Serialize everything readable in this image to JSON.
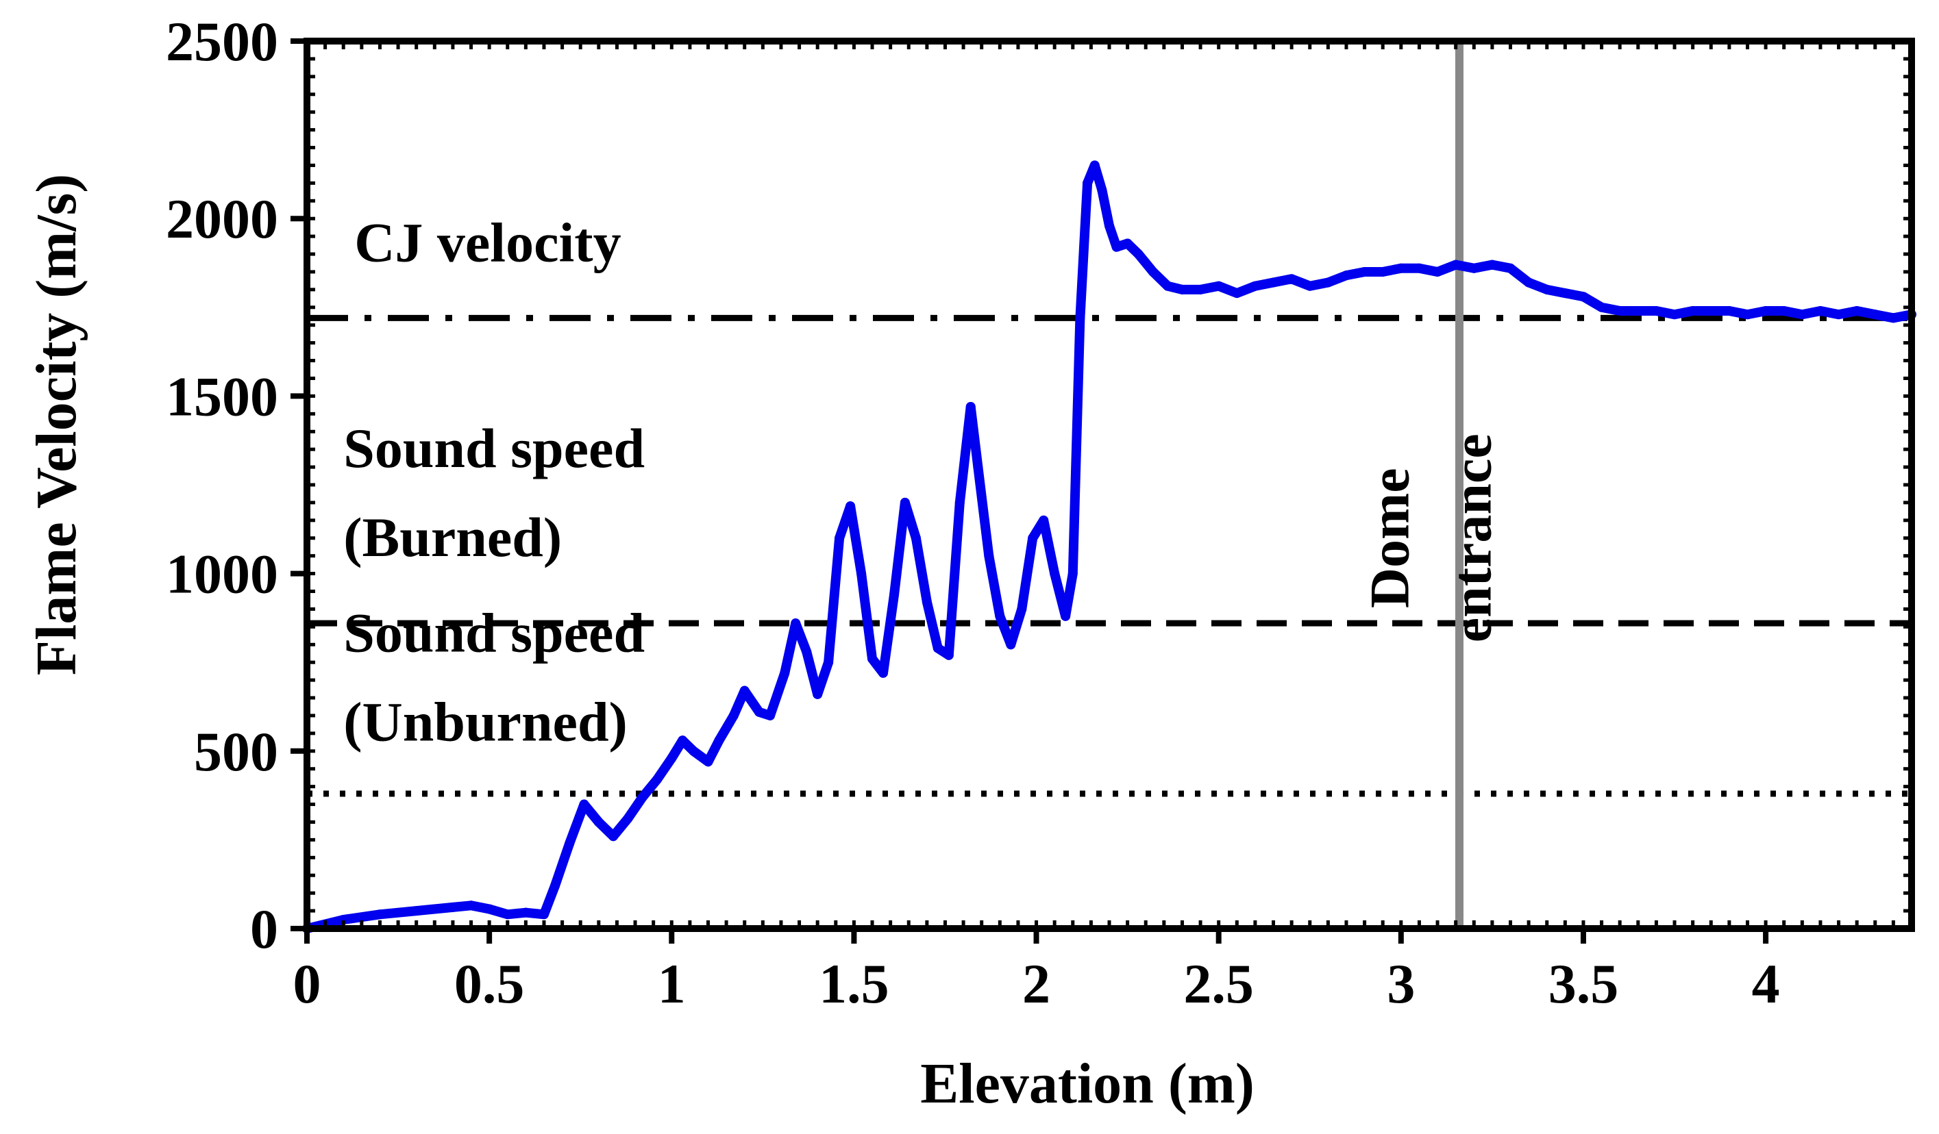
{
  "chart_data": {
    "type": "line",
    "title": "",
    "xlabel": "Elevation (m)",
    "ylabel": "Flame Velocity (m/s)",
    "xlim": [
      0,
      4.4
    ],
    "ylim": [
      0,
      2500
    ],
    "xticks": [
      0,
      0.5,
      1,
      1.5,
      2,
      2.5,
      3,
      3.5,
      4
    ],
    "xtick_labels": [
      "0",
      "0.5",
      "1",
      "1.5",
      "2",
      "2.5",
      "3",
      "3.5",
      "4"
    ],
    "yticks": [
      0,
      500,
      1000,
      1500,
      2000,
      2500
    ],
    "ytick_labels": [
      "0",
      "500",
      "1000",
      "1500",
      "2000",
      "2500"
    ],
    "grid": false,
    "series": [
      {
        "name": "Flame velocity",
        "color": "#0000ee",
        "x": [
          0,
          0.1,
          0.2,
          0.3,
          0.4,
          0.45,
          0.5,
          0.55,
          0.6,
          0.65,
          0.68,
          0.72,
          0.76,
          0.8,
          0.84,
          0.88,
          0.92,
          0.96,
          1.0,
          1.03,
          1.06,
          1.1,
          1.13,
          1.17,
          1.2,
          1.24,
          1.27,
          1.31,
          1.34,
          1.37,
          1.4,
          1.43,
          1.46,
          1.49,
          1.52,
          1.55,
          1.58,
          1.61,
          1.64,
          1.67,
          1.7,
          1.73,
          1.76,
          1.79,
          1.82,
          1.84,
          1.87,
          1.9,
          1.93,
          1.96,
          1.99,
          2.02,
          2.05,
          2.08,
          2.1,
          2.12,
          2.14,
          2.16,
          2.18,
          2.2,
          2.22,
          2.25,
          2.28,
          2.32,
          2.36,
          2.4,
          2.45,
          2.5,
          2.55,
          2.6,
          2.65,
          2.7,
          2.75,
          2.8,
          2.85,
          2.9,
          2.95,
          3.0,
          3.05,
          3.1,
          3.15,
          3.2,
          3.25,
          3.3,
          3.35,
          3.4,
          3.45,
          3.5,
          3.55,
          3.6,
          3.65,
          3.7,
          3.75,
          3.8,
          3.85,
          3.9,
          3.95,
          4.0,
          4.05,
          4.1,
          4.15,
          4.2,
          4.25,
          4.3,
          4.35,
          4.4
        ],
        "y": [
          0,
          25,
          40,
          50,
          60,
          65,
          55,
          40,
          45,
          40,
          120,
          240,
          350,
          300,
          260,
          310,
          370,
          420,
          480,
          530,
          500,
          470,
          530,
          600,
          670,
          610,
          600,
          720,
          860,
          780,
          660,
          750,
          1100,
          1190,
          1000,
          760,
          720,
          940,
          1200,
          1100,
          920,
          790,
          770,
          1200,
          1470,
          1300,
          1050,
          880,
          800,
          900,
          1100,
          1150,
          1000,
          880,
          1000,
          1720,
          2100,
          2150,
          2080,
          1980,
          1920,
          1930,
          1900,
          1850,
          1810,
          1800,
          1800,
          1810,
          1790,
          1810,
          1820,
          1830,
          1810,
          1820,
          1840,
          1850,
          1850,
          1860,
          1860,
          1850,
          1870,
          1860,
          1870,
          1860,
          1820,
          1800,
          1790,
          1780,
          1750,
          1740,
          1740,
          1740,
          1730,
          1740,
          1740,
          1740,
          1730,
          1740,
          1740,
          1730,
          1740,
          1730,
          1740,
          1730,
          1720,
          1730
        ]
      }
    ],
    "reference_lines": [
      {
        "name": "CJ velocity",
        "orientation": "horizontal",
        "value": 1720,
        "style": "dashdot",
        "color": "#000000"
      },
      {
        "name": "Sound speed (Burned)",
        "orientation": "horizontal",
        "value": 860,
        "style": "dashed",
        "color": "#000000"
      },
      {
        "name": "Sound speed (Unburned)",
        "orientation": "horizontal",
        "value": 380,
        "style": "dotted",
        "color": "#000000"
      },
      {
        "name": "Dome entrance",
        "orientation": "vertical",
        "value": 3.16,
        "style": "solid",
        "color": "#888888"
      }
    ],
    "annotations": [
      {
        "id": "cj",
        "lines": [
          "CJ velocity"
        ]
      },
      {
        "id": "burned",
        "lines": [
          "Sound speed",
          "(Burned)"
        ]
      },
      {
        "id": "unburned",
        "lines": [
          "Sound speed",
          "(Unburned)"
        ]
      },
      {
        "id": "dome",
        "lines": [
          "Dome",
          "entrance"
        ]
      }
    ]
  }
}
